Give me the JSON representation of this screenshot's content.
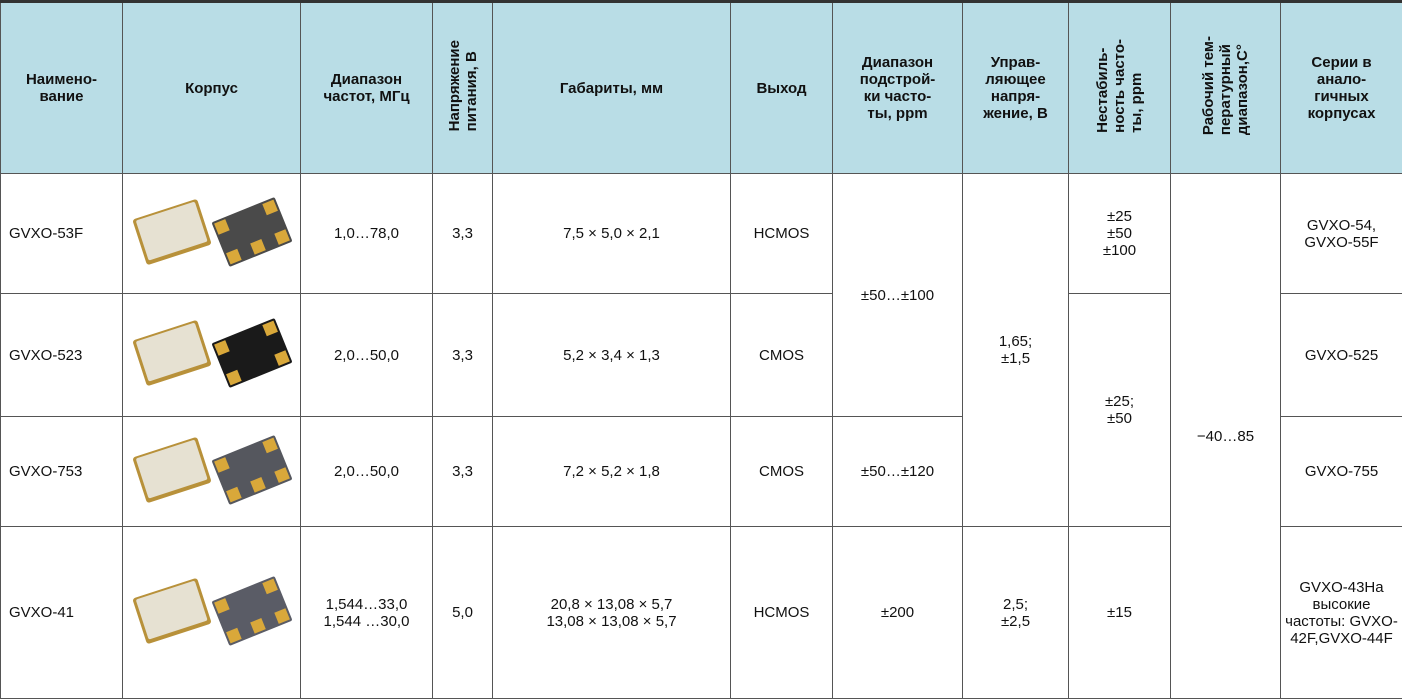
{
  "table": {
    "header": [
      "Наимено-\nвание",
      "Корпус",
      "Диапазон\nчастот, МГц",
      "Напряжение\nпитания, В",
      "Габариты, мм",
      "Выход",
      "Диапазон\nподстрой-\nки часто-\nты, ppm",
      "Управ-\nляющее\nнапря-\nжение, В",
      "Нестабиль-\nность часто-\nты, ppm",
      "Рабочий тем-\nпературный\nдиапазон,С°",
      "Серии в\nанало-\nгичных\nкорпусах"
    ],
    "rows": [
      [
        "GVXO-53F",
        "1,0…78,0",
        "3,3",
        "7,5 × 5,0 × 2,1",
        "HCMOS",
        "±50…±100",
        "1,65;\n±1,5",
        "±25\n±50\n±100",
        "−40…85",
        "GVXO-54,\nGVXO-55F"
      ],
      [
        "GVXO-523",
        "2,0…50,0",
        "3,3",
        "5,2 × 3,4 × 1,3",
        "CMOS",
        "±25;\n±50",
        "GVXO-525"
      ],
      [
        "GVXO-753",
        "2,0…50,0",
        "3,3",
        "7,2 × 5,2 × 1,8",
        "CMOS",
        "±50…±120",
        "GVXO-755"
      ],
      [
        "GVXO-41",
        "1,544…33,0\n1,544 …30,0",
        "5,0",
        "20,8 × 13,08 × 5,7\n13,08 × 13,08 × 5,7",
        "HCMOS",
        "±200",
        "2,5;\n±2,5",
        "±15",
        "GVXO-43На высокие частоты: GVXO-42F,GVXO-44F"
      ]
    ]
  }
}
